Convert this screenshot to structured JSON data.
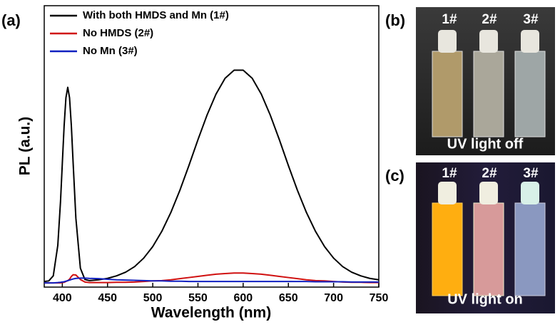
{
  "chart_data": {
    "type": "line",
    "panel_label": "(a)",
    "xlabel": "Wavelength (nm)",
    "ylabel": "PL (a.u.)",
    "x": [
      380,
      385,
      390,
      395,
      398,
      400,
      402,
      404,
      406,
      408,
      410,
      412,
      415,
      420,
      425,
      430,
      440,
      450,
      460,
      470,
      480,
      490,
      500,
      510,
      520,
      530,
      540,
      550,
      560,
      570,
      580,
      590,
      600,
      610,
      620,
      630,
      640,
      650,
      660,
      670,
      680,
      690,
      700,
      710,
      720,
      730,
      740,
      750
    ],
    "series": [
      {
        "name": "With both HMDS and Mn (1#)",
        "color": "#000000",
        "values": [
          0.02,
          0.022,
          0.04,
          0.148,
          0.304,
          0.439,
          0.573,
          0.673,
          0.71,
          0.673,
          0.573,
          0.439,
          0.245,
          0.067,
          0.027,
          0.023,
          0.026,
          0.031,
          0.04,
          0.053,
          0.073,
          0.103,
          0.144,
          0.198,
          0.265,
          0.344,
          0.432,
          0.524,
          0.611,
          0.686,
          0.742,
          0.771,
          0.771,
          0.742,
          0.686,
          0.611,
          0.524,
          0.432,
          0.344,
          0.265,
          0.198,
          0.144,
          0.103,
          0.073,
          0.053,
          0.04,
          0.031,
          0.026
        ]
      },
      {
        "name": "No HMDS (2#)",
        "color": "#d01010",
        "values": [
          0.015,
          0.015,
          0.015,
          0.015,
          0.015,
          0.016,
          0.017,
          0.02,
          0.023,
          0.028,
          0.038,
          0.044,
          0.043,
          0.027,
          0.018,
          0.016,
          0.016,
          0.016,
          0.017,
          0.017,
          0.018,
          0.02,
          0.022,
          0.023,
          0.026,
          0.03,
          0.034,
          0.038,
          0.042,
          0.046,
          0.048,
          0.05,
          0.05,
          0.048,
          0.046,
          0.042,
          0.038,
          0.034,
          0.03,
          0.026,
          0.023,
          0.022,
          0.02,
          0.018,
          0.017,
          0.017,
          0.016,
          0.016
        ]
      },
      {
        "name": "No Mn (3#)",
        "color": "#1020c0",
        "values": [
          0.015,
          0.015,
          0.015,
          0.016,
          0.017,
          0.018,
          0.019,
          0.021,
          0.023,
          0.025,
          0.027,
          0.029,
          0.031,
          0.032,
          0.032,
          0.031,
          0.03,
          0.028,
          0.026,
          0.025,
          0.024,
          0.023,
          0.022,
          0.022,
          0.021,
          0.021,
          0.02,
          0.02,
          0.02,
          0.02,
          0.02,
          0.02,
          0.02,
          0.02,
          0.02,
          0.02,
          0.02,
          0.02,
          0.02,
          0.02,
          0.019,
          0.019,
          0.019,
          0.019,
          0.018,
          0.018,
          0.018,
          0.018
        ]
      }
    ],
    "xlim": [
      380,
      750
    ],
    "xticks": [
      400,
      450,
      500,
      550,
      600,
      650,
      700,
      750
    ],
    "ylim": [
      0,
      1
    ],
    "legend": "upper left"
  },
  "photos": [
    {
      "panel_label": "(b)",
      "labels": [
        "1#",
        "2#",
        "3#"
      ],
      "caption": "UV light off"
    },
    {
      "panel_label": "(c)",
      "labels": [
        "1#",
        "2#",
        "3#"
      ],
      "caption": "UV light on"
    }
  ]
}
